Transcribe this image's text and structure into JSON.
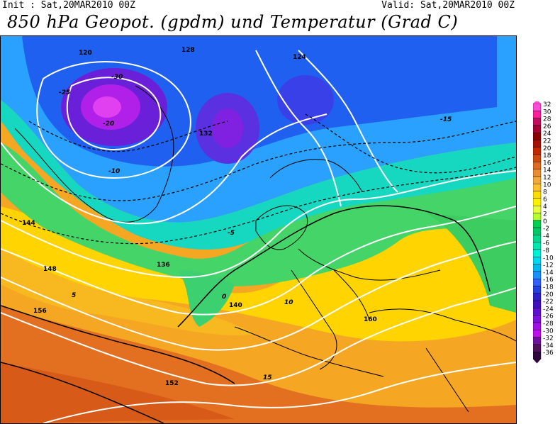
{
  "header": {
    "init": "Init : Sat,20MAR2010 00Z",
    "valid": "Valid: Sat,20MAR2010 00Z",
    "title": "850 hPa Geopot. (gpdm) und Temperatur (Grad C)"
  },
  "legend": {
    "labels": [
      "32",
      "30",
      "28",
      "26",
      "24",
      "22",
      "20",
      "18",
      "16",
      "14",
      "12",
      "10",
      "8",
      "6",
      "4",
      "2",
      "0",
      "-2",
      "-4",
      "-6",
      "-8",
      "-10",
      "-12",
      "-14",
      "-16",
      "-18",
      "-20",
      "-22",
      "-24",
      "-26",
      "-28",
      "-30",
      "-32",
      "-34",
      "-36"
    ],
    "colors": [
      "#ff4bd8",
      "#ff1d9d",
      "#c40c5c",
      "#a80034",
      "#8c0000",
      "#a81000",
      "#c42800",
      "#d04a10",
      "#e06a20",
      "#ec8c30",
      "#f6a838",
      "#ffc030",
      "#ffdc00",
      "#fff000",
      "#e8ff40",
      "#b4ff30",
      "#00d050",
      "#00c868",
      "#00d890",
      "#00e8b0",
      "#00f0d8",
      "#00d8f0",
      "#00b8f0",
      "#1a90ff",
      "#3060ff",
      "#2040e0",
      "#3020c8",
      "#4010c0",
      "#6010d0",
      "#8010e0",
      "#a010e8",
      "#c010f0",
      "#7010a0",
      "#50105c",
      "#30083c"
    ]
  },
  "map": {
    "geopotential_labels_gpdm": [
      "120",
      "128",
      "124",
      "132",
      "136",
      "140",
      "144",
      "148",
      "152",
      "156",
      "160"
    ],
    "temperature_labels_c": [
      "-30",
      "-25",
      "-20",
      "-15",
      "-10",
      "-5",
      "0",
      "5",
      "10",
      "15"
    ]
  }
}
